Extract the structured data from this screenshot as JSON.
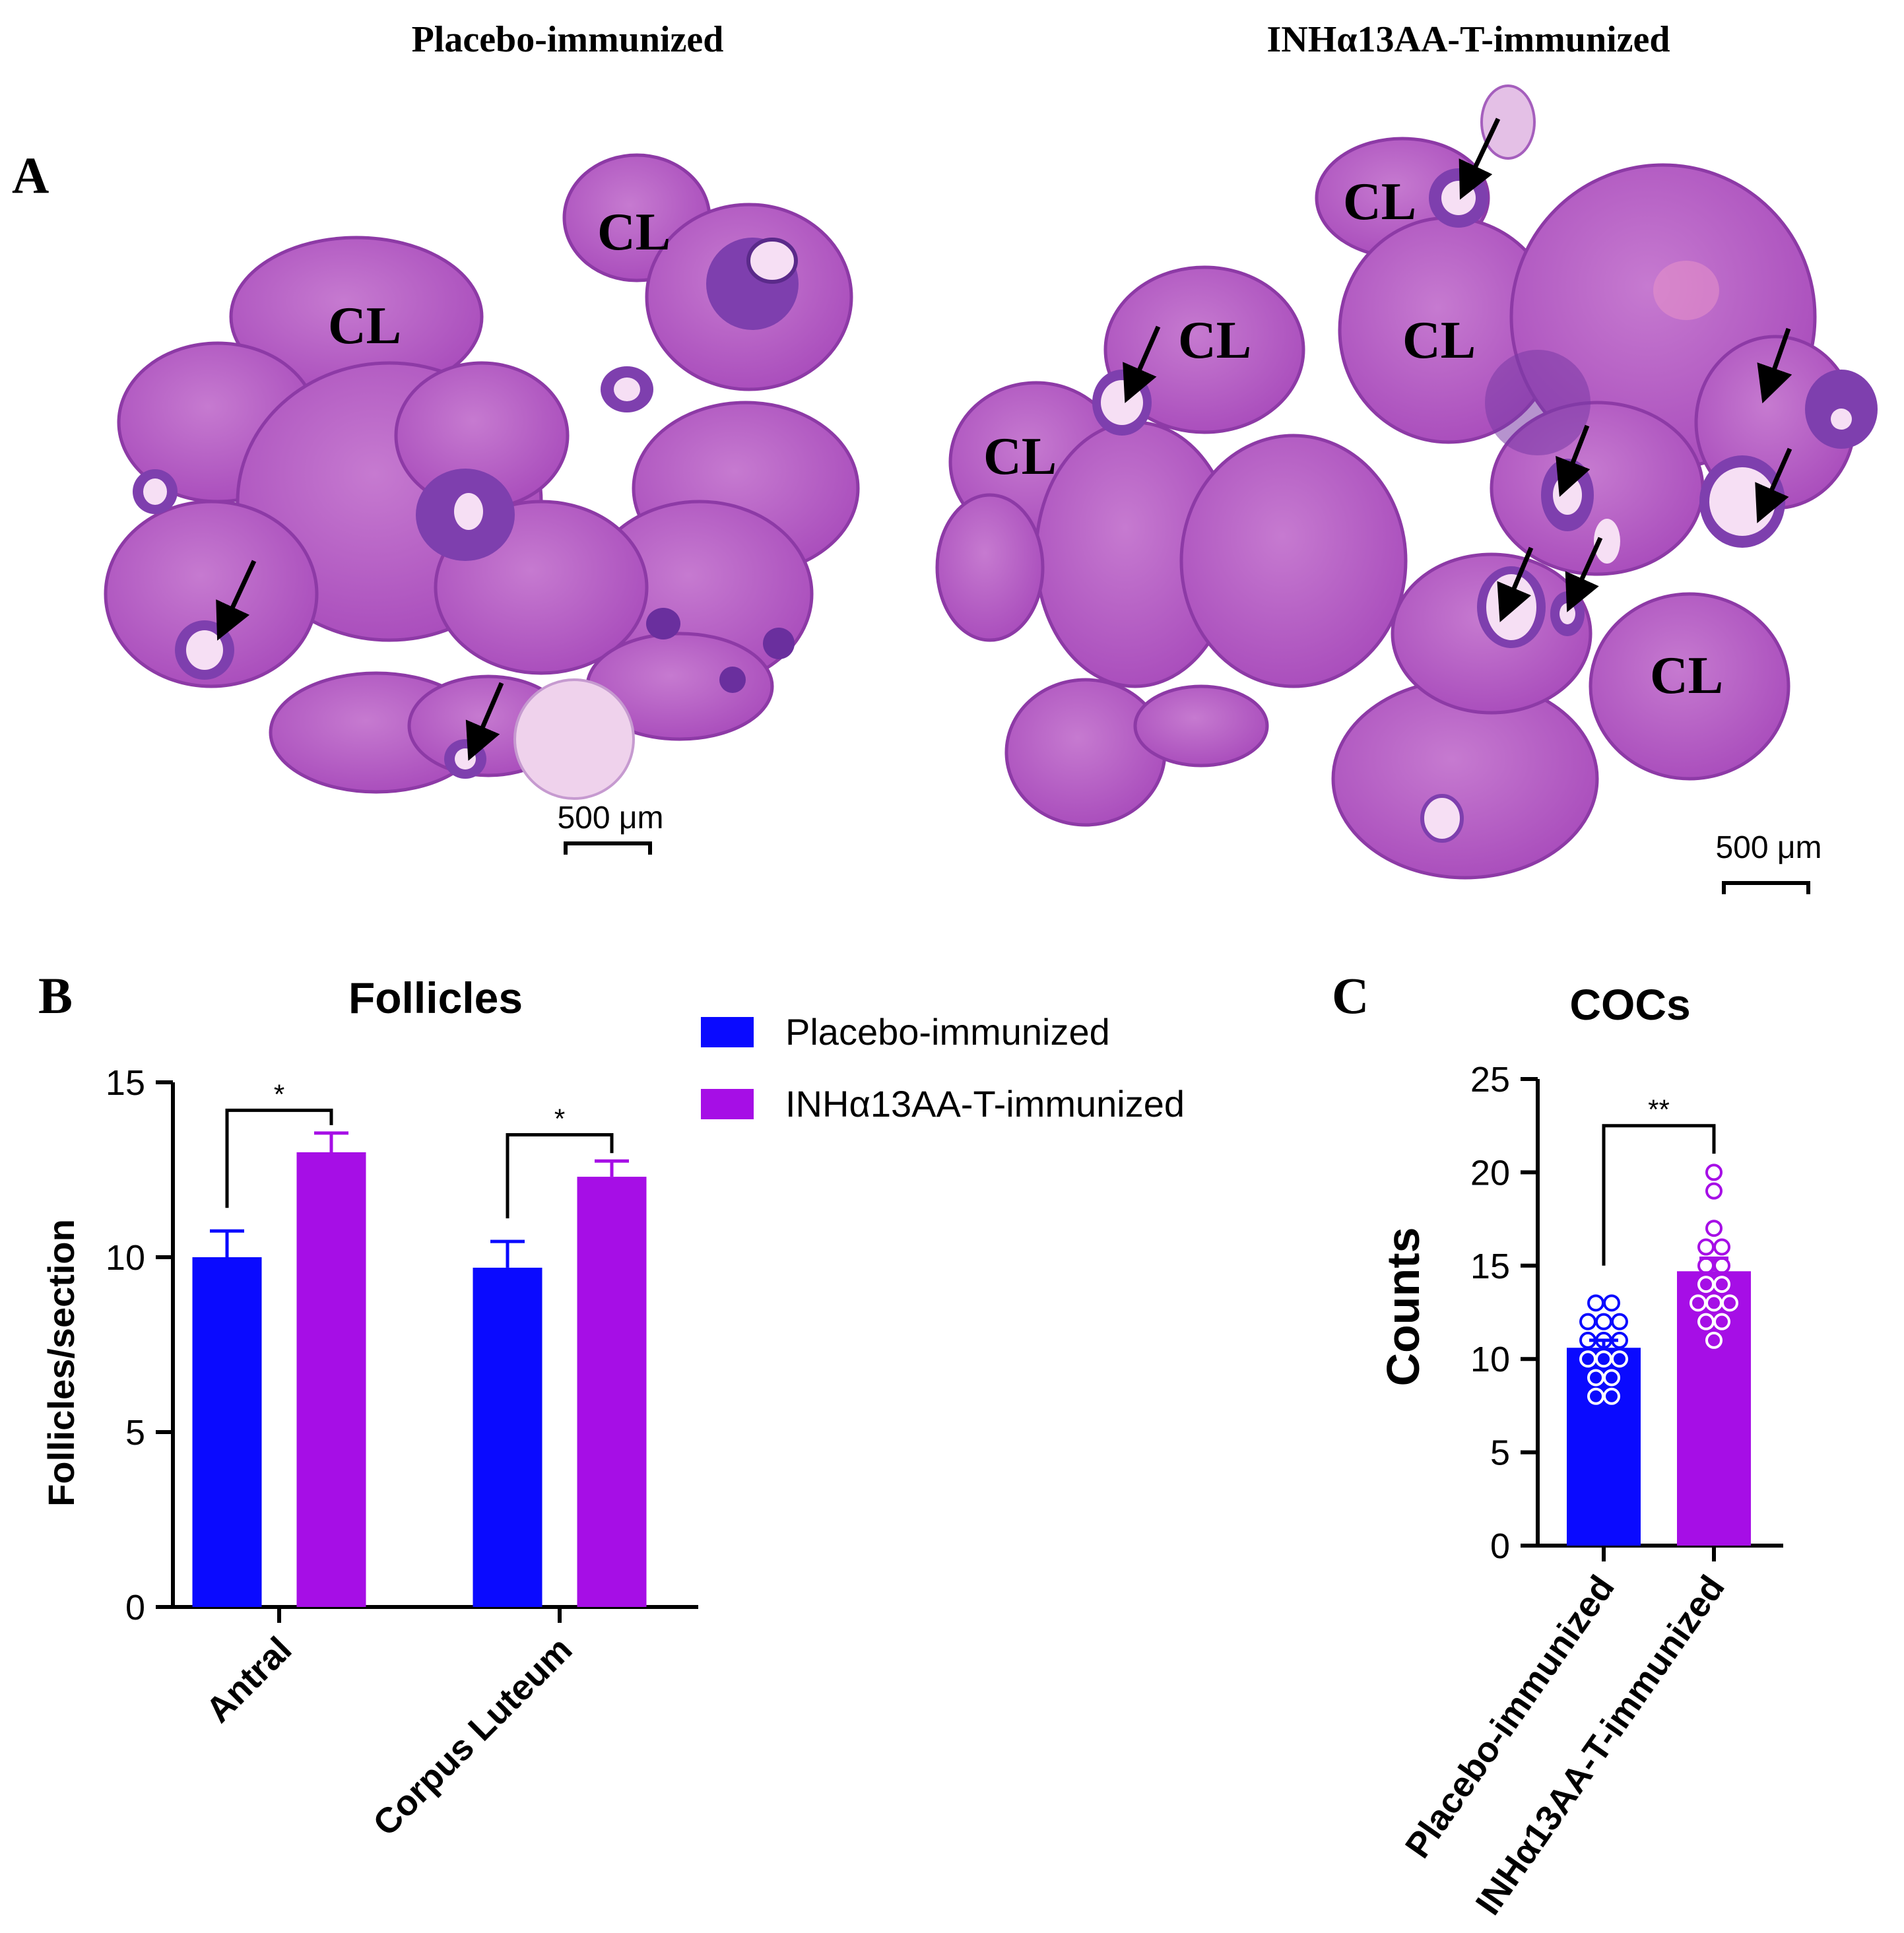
{
  "panel_a": {
    "letter": "A",
    "left_title": "Placebo-immunized",
    "right_title": "INHα13AA-T-immunized",
    "left_labels": [
      "CL",
      "CL"
    ],
    "right_labels": [
      "CL",
      "CL",
      "CL",
      "CL",
      "CL"
    ],
    "scale_bar_left": "500 μm",
    "scale_bar_right": "500 μm"
  },
  "panel_b": {
    "letter": "B"
  },
  "panel_c": {
    "letter": "C"
  },
  "colors": {
    "placebo": "#0a0aff",
    "inh": "#a60ee6",
    "tissue": "#b04ec0",
    "tissue_dark": "#7a3aa6",
    "tissue_light": "#c984d2",
    "cavity": "#f6dff4"
  },
  "chart_data": [
    {
      "type": "bar",
      "title": "Follicles",
      "ylabel": "Follicles/section",
      "xlabel": "",
      "categories": [
        "Antral",
        "Corpus Luteum"
      ],
      "series": [
        {
          "name": "Placebo-immunized",
          "values": [
            10.0,
            9.7
          ],
          "errors": [
            0.75,
            0.75
          ]
        },
        {
          "name": "INHα13AA-T-immunized",
          "values": [
            13.0,
            12.3
          ],
          "errors": [
            0.55,
            0.45
          ]
        }
      ],
      "ylim": [
        0,
        15
      ],
      "yticks": [
        0,
        5,
        10,
        15
      ],
      "significance": [
        "*",
        "*"
      ],
      "legend": "top-right"
    },
    {
      "type": "bar",
      "title": "COCs",
      "ylabel": "Counts",
      "xlabel": "",
      "categories": [
        "Placebo-immunized",
        "INHα13AA-T-immunized"
      ],
      "values": [
        10.6,
        14.7
      ],
      "errors": [
        0.4,
        0.7
      ],
      "points": [
        [
          13,
          13,
          12,
          12,
          12,
          11,
          11,
          11,
          10,
          10,
          10,
          9,
          9,
          8,
          8
        ],
        [
          20,
          19,
          17,
          16,
          16,
          15,
          15,
          14,
          14,
          13,
          13,
          13,
          12,
          12,
          11
        ]
      ],
      "ylim": [
        0,
        25
      ],
      "yticks": [
        0,
        5,
        10,
        15,
        20,
        25
      ],
      "significance": "**"
    }
  ]
}
